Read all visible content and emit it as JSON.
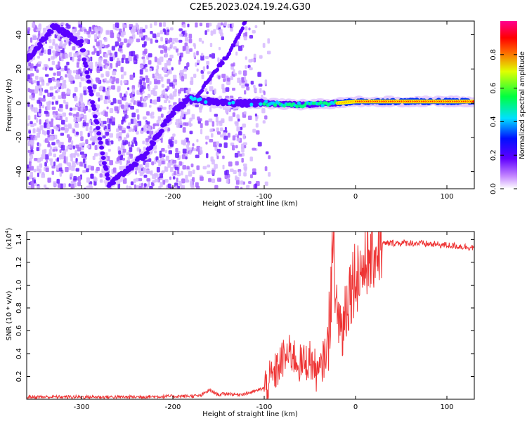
{
  "title": "C2E5.2023.024.19.24.G30",
  "chart_data": [
    {
      "type": "heatmap",
      "name": "spectrogram",
      "xlabel": "Height of straight line (km)",
      "ylabel": "Frequency (Hz)",
      "xlim": [
        -360,
        130
      ],
      "ylim": [
        -50,
        48
      ],
      "x_ticks": [
        -300,
        -200,
        -100,
        0,
        100
      ],
      "y_ticks": [
        -40,
        -20,
        0,
        20,
        40
      ],
      "x_tick_labels": [
        "-300",
        "-200",
        "-100",
        "0",
        "100"
      ],
      "y_tick_labels": [
        "-40",
        "-20",
        "0",
        "20",
        "40"
      ],
      "colorbar": {
        "label": "Normalized spectral amplitude",
        "range": [
          0,
          1
        ],
        "ticks": [
          0.0,
          0.2,
          0.4,
          0.6,
          0.8
        ],
        "tick_labels": [
          "0.0",
          "0.2",
          "0.4",
          "0.6",
          "0.8"
        ],
        "colors": [
          "#ffffff",
          "#8000ff",
          "#0000ff",
          "#00ffff",
          "#00ff00",
          "#ffff00",
          "#ff0000",
          "#ff00a0"
        ]
      },
      "features": [
        {
          "name": "signal track",
          "points": [
            [
              -360,
              25
            ],
            [
              -330,
              45
            ],
            [
              -300,
              35
            ],
            [
              -270,
              -48
            ],
            [
              -230,
              -30
            ],
            [
              -200,
              -5
            ],
            [
              -180,
              3
            ],
            [
              -150,
              0
            ],
            [
              -120,
              0
            ],
            [
              -100,
              0
            ],
            [
              -60,
              -1
            ],
            [
              -20,
              0
            ],
            [
              0,
              1
            ],
            [
              130,
              1
            ]
          ]
        },
        {
          "name": "diagonal alias",
          "points": [
            [
              -180,
              0
            ],
            [
              -140,
              28
            ],
            [
              -120,
              48
            ]
          ]
        }
      ]
    },
    {
      "type": "line",
      "name": "snr",
      "xlabel": "Height of straight line (km)",
      "ylabel": "SNR (10 * v/v)",
      "y_multiplier": "(x10",
      "y_multiplier_exp": "4",
      "xlim": [
        -360,
        130
      ],
      "ylim": [
        0,
        1.47
      ],
      "x_ticks": [
        -300,
        -200,
        -100,
        0,
        100
      ],
      "y_ticks": [
        0.2,
        0.4,
        0.6,
        0.8,
        1.0,
        1.2,
        1.4
      ],
      "x_tick_labels": [
        "-300",
        "-200",
        "-100",
        "0",
        "100"
      ],
      "y_tick_labels": [
        "0.2",
        "0.4",
        "0.6",
        "0.8",
        "1.0",
        "1.2",
        "1.4"
      ],
      "line_color": "#ee3333",
      "series": [
        {
          "x": [
            -360,
            -300,
            -250,
            -200,
            -170,
            -160,
            -150,
            -140,
            -130,
            -120,
            -110,
            -100,
            -90,
            -80,
            -70,
            -60,
            -50,
            -40,
            -30,
            -25,
            -20,
            -15,
            -10,
            -5,
            0,
            10,
            20,
            30,
            40,
            60,
            80,
            100,
            130
          ],
          "y": [
            0.02,
            0.02,
            0.02,
            0.025,
            0.03,
            0.08,
            0.04,
            0.05,
            0.04,
            0.05,
            0.07,
            0.1,
            0.2,
            0.35,
            0.4,
            0.3,
            0.35,
            0.2,
            0.5,
            1.2,
            0.8,
            0.6,
            0.85,
            1.0,
            1.1,
            1.15,
            1.3,
            1.36,
            1.37,
            1.37,
            1.36,
            1.35,
            1.33
          ]
        }
      ]
    }
  ]
}
